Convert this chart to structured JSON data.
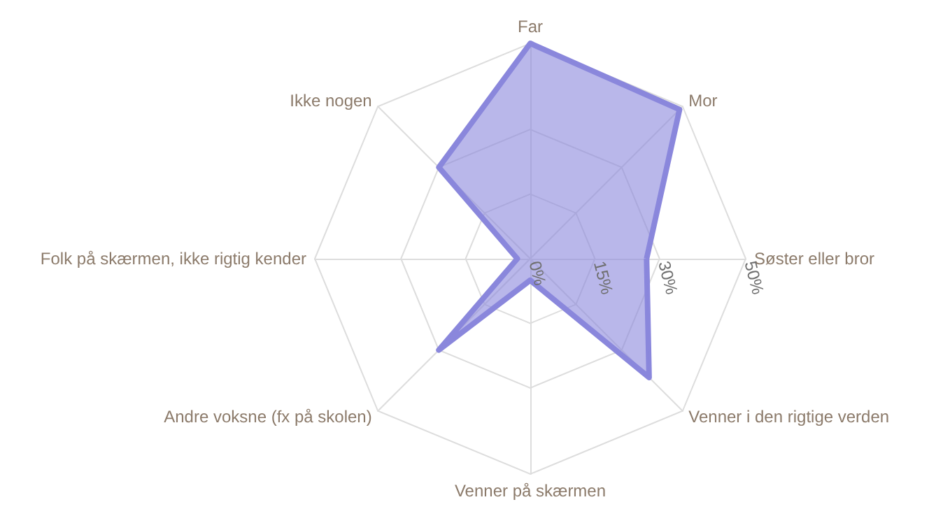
{
  "chart_data": {
    "type": "radar",
    "categories": [
      "Far",
      "Mor",
      "Søster eller bror",
      "Venner i den rigtige verden",
      "Venner på skærmen",
      "Andre voksne (fx på skolen)",
      "Folk på skærmen, ikke rigtig kender",
      "Ikke nogen"
    ],
    "series": [
      {
        "color": "#8a87dc",
        "values": [
          50,
          49,
          27,
          39,
          5,
          30,
          3,
          30
        ]
      }
    ],
    "ylim": [
      0,
      50
    ],
    "yticks": [
      {
        "value": 0,
        "label": "0%"
      },
      {
        "value": 15,
        "label": "15%"
      },
      {
        "value": 30,
        "label": "30%"
      },
      {
        "value": 50,
        "label": "50%"
      }
    ],
    "grid": true
  }
}
